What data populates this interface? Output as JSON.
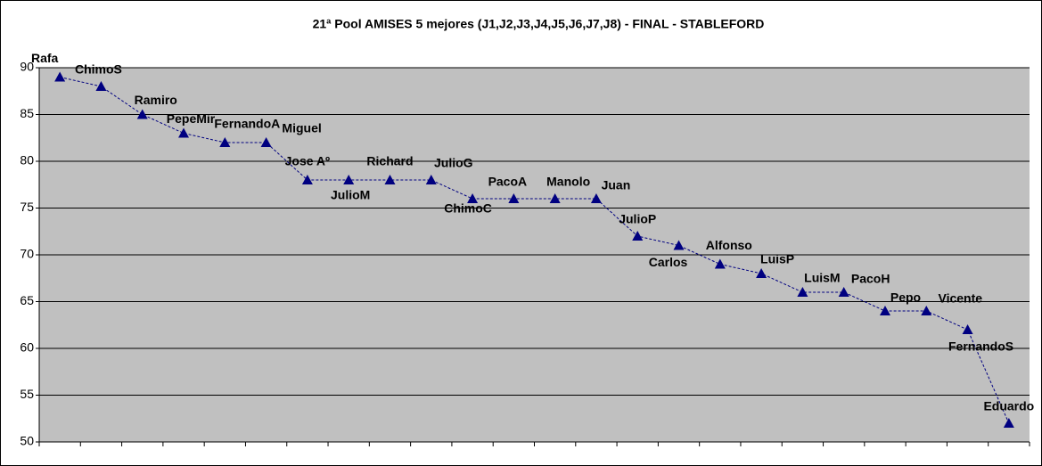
{
  "chart_data": {
    "type": "line",
    "title": "21ª Pool AMISES 5 mejores (J1,J2,J3,J4,J5,J6,J7,J8) - FINAL - STABLEFORD",
    "categories": [
      "Rafa",
      "ChimoS",
      "Ramiro",
      "PepeMir",
      "FernandoA",
      "Miguel",
      "Jose Aº",
      "JulioM",
      "Richard",
      "JulioG",
      "ChimoC",
      "PacoA",
      "Manolo",
      "Juan",
      "JulioP",
      "Carlos",
      "Alfonso",
      "LuisP",
      "LuisM",
      "PacoH",
      "Pepo",
      "Vicente",
      "FernandoS",
      "Eduardo"
    ],
    "values": [
      89,
      88,
      85,
      83,
      82,
      82,
      78,
      78,
      78,
      78,
      76,
      76,
      76,
      76,
      72,
      71,
      69,
      68,
      66,
      66,
      64,
      64,
      62,
      52
    ],
    "color": "#000080",
    "ylim": [
      50,
      90
    ],
    "yticks": [
      50,
      55,
      60,
      65,
      70,
      75,
      80,
      85,
      90
    ],
    "grid": true
  }
}
